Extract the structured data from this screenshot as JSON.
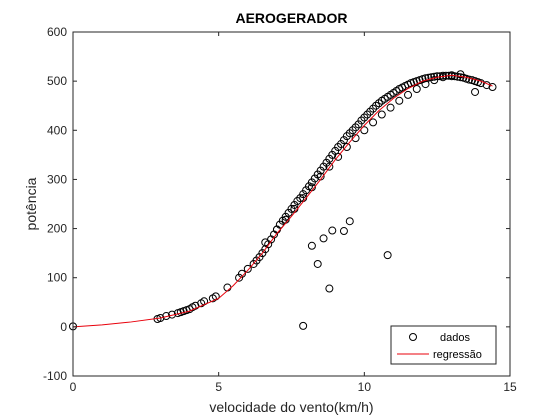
{
  "chart_data": {
    "type": "scatter",
    "title": "AEROGERADOR",
    "xlabel": "velocidade do vento(km/h)",
    "ylabel": "potência",
    "xlim": [
      0,
      15
    ],
    "ylim": [
      -100,
      600
    ],
    "xticks": [
      0,
      5,
      10,
      15
    ],
    "yticks": [
      -100,
      0,
      100,
      200,
      300,
      400,
      500,
      600
    ],
    "grid": false,
    "legend_position": "bottom-right",
    "series": [
      {
        "name": "dados",
        "kind": "markers",
        "marker": "circle-open",
        "color": "#000000",
        "x": [
          0.0,
          2.9,
          3.0,
          3.2,
          3.4,
          3.6,
          3.7,
          3.8,
          3.9,
          4.0,
          4.1,
          4.2,
          4.4,
          4.5,
          4.8,
          4.9,
          5.3,
          5.7,
          5.8,
          6.0,
          6.2,
          6.3,
          6.4,
          6.5,
          6.6,
          6.7,
          6.8,
          6.9,
          7.0,
          7.1,
          7.2,
          7.3,
          7.4,
          7.5,
          7.6,
          7.7,
          7.8,
          7.9,
          8.0,
          8.1,
          8.2,
          8.3,
          8.4,
          8.5,
          8.6,
          8.7,
          8.8,
          8.9,
          9.0,
          9.1,
          9.2,
          9.3,
          9.4,
          9.5,
          9.6,
          9.7,
          9.8,
          9.9,
          10.0,
          10.1,
          10.2,
          10.3,
          10.4,
          10.5,
          10.6,
          10.7,
          10.8,
          10.9,
          11.0,
          11.1,
          11.2,
          11.3,
          11.4,
          11.5,
          11.6,
          11.7,
          11.8,
          11.9,
          12.0,
          12.1,
          12.2,
          12.3,
          12.4,
          12.5,
          12.6,
          12.7,
          12.8,
          12.9,
          13.0,
          13.1,
          13.2,
          13.3,
          13.4,
          13.5,
          13.6,
          13.7,
          13.8,
          13.9,
          14.0,
          14.2,
          14.4,
          6.6,
          7.0,
          7.3,
          7.6,
          7.9,
          8.2,
          8.5,
          8.8,
          9.1,
          9.4,
          9.7,
          10.0,
          10.3,
          10.6,
          10.9,
          11.2,
          11.5,
          11.8,
          12.1,
          12.4,
          12.7,
          13.0,
          13.3,
          7.9,
          8.2,
          8.4,
          8.6,
          8.8,
          8.9,
          9.3,
          9.5,
          10.8,
          13.8
        ],
        "y": [
          1,
          16,
          18,
          22,
          25,
          28,
          30,
          32,
          34,
          36,
          40,
          43,
          48,
          52,
          58,
          62,
          80,
          100,
          108,
          118,
          128,
          135,
          142,
          150,
          158,
          168,
          178,
          188,
          198,
          208,
          216,
          224,
          232,
          240,
          248,
          256,
          262,
          270,
          278,
          286,
          294,
          302,
          310,
          318,
          326,
          334,
          342,
          350,
          358,
          366,
          372,
          380,
          388,
          394,
          400,
          406,
          412,
          420,
          426,
          432,
          438,
          444,
          450,
          455,
          460,
          464,
          468,
          472,
          476,
          480,
          484,
          487,
          490,
          493,
          496,
          498,
          500,
          502,
          504,
          506,
          507,
          508,
          509,
          510,
          510,
          511,
          511,
          511,
          510,
          510,
          509,
          508,
          507,
          505,
          503,
          502,
          500,
          498,
          496,
          492,
          488,
          172,
          198,
          218,
          240,
          262,
          284,
          306,
          326,
          346,
          366,
          384,
          400,
          416,
          432,
          446,
          460,
          472,
          484,
          494,
          502,
          508,
          512,
          514,
          2,
          165,
          128,
          180,
          78,
          196,
          195,
          215,
          146,
          478
        ]
      },
      {
        "name": "regressão",
        "kind": "line",
        "color": "#e8000b",
        "x": [
          0,
          1,
          2,
          3,
          4,
          5,
          5.5,
          6,
          6.5,
          7,
          7.5,
          8,
          8.5,
          9,
          9.5,
          10,
          10.5,
          11,
          11.5,
          12,
          12.5,
          13,
          13.5,
          14,
          14.4
        ],
        "y": [
          0,
          4,
          10,
          18,
          32,
          58,
          84,
          115,
          150,
          190,
          225,
          262,
          300,
          340,
          376,
          410,
          440,
          465,
          485,
          500,
          508,
          512,
          508,
          500,
          490
        ]
      }
    ]
  }
}
